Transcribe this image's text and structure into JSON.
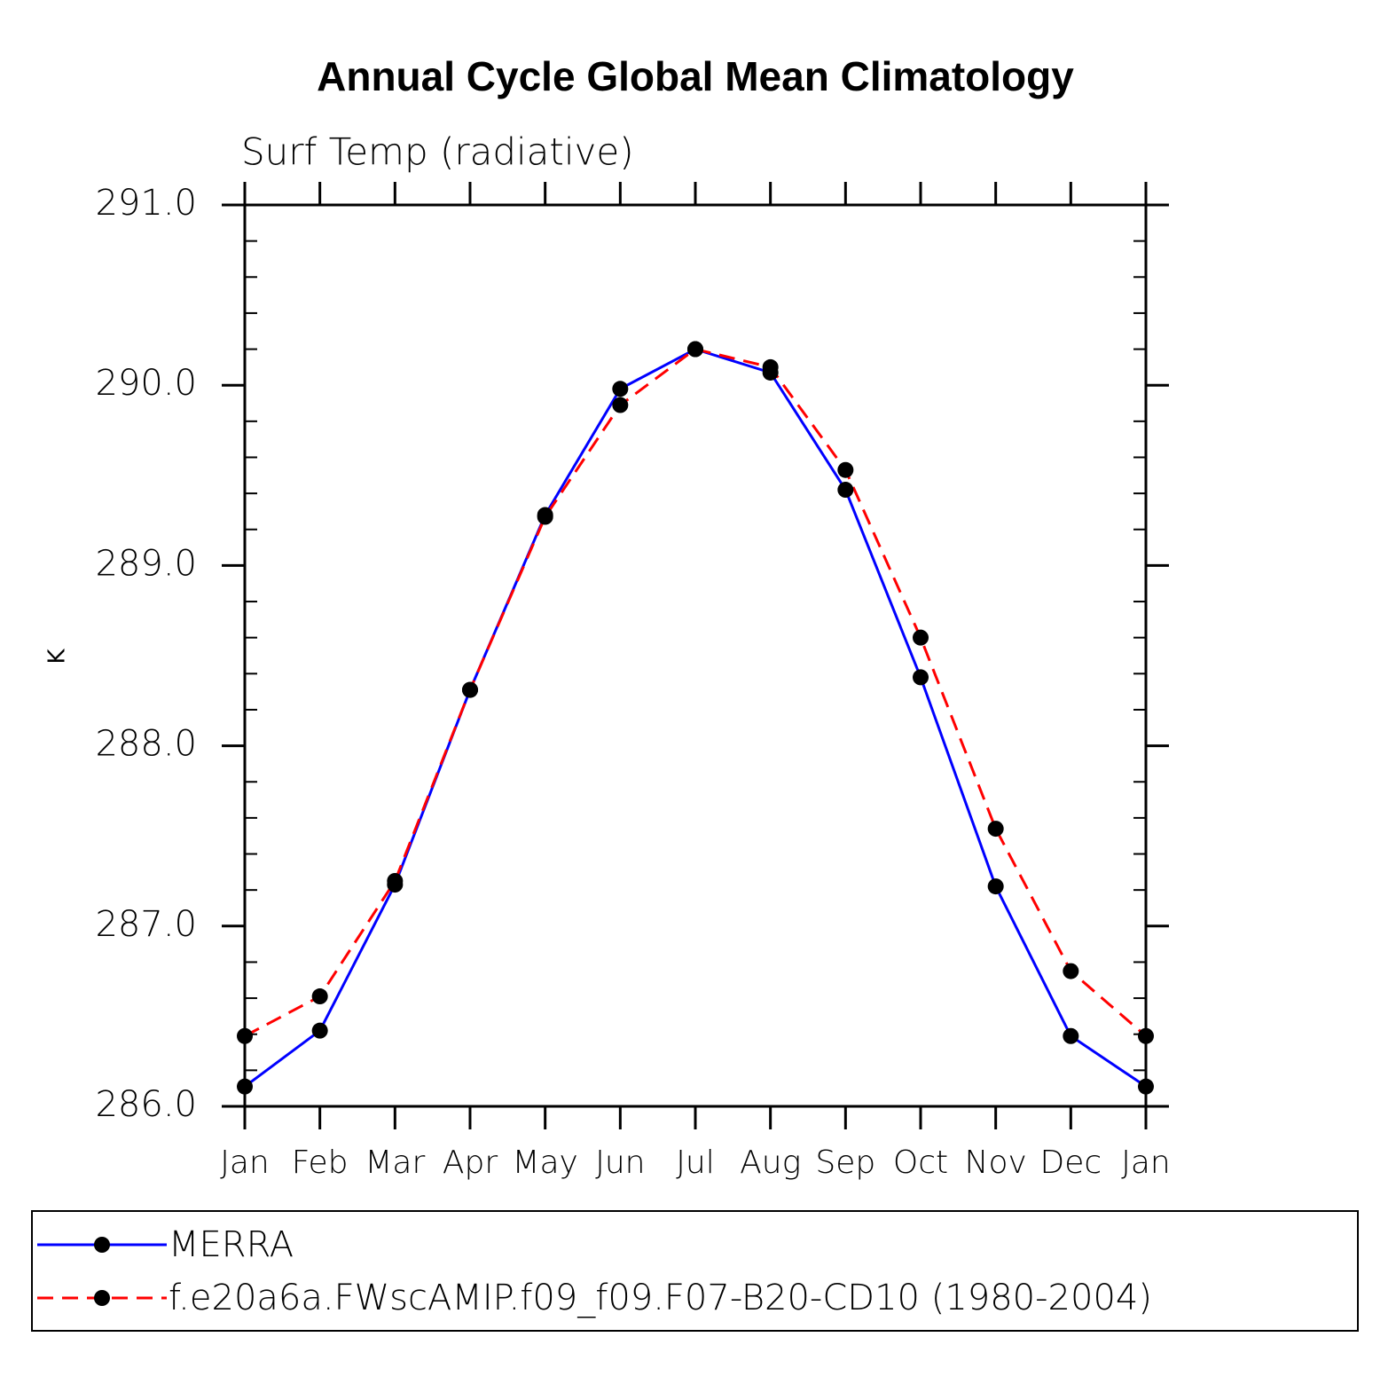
{
  "chart_data": {
    "type": "line",
    "title": "Annual Cycle Global Mean Climatology",
    "subtitle": "Surf Temp (radiative)",
    "y_label": "K",
    "categories": [
      "Jan",
      "Feb",
      "Mar",
      "Apr",
      "May",
      "Jun",
      "Jul",
      "Aug",
      "Sep",
      "Oct",
      "Nov",
      "Dec",
      "Jan"
    ],
    "series": [
      {
        "name": "MERRA",
        "color": "#0000ff",
        "dash": false,
        "values": [
          286.11,
          286.42,
          287.23,
          288.31,
          289.28,
          289.98,
          290.2,
          290.07,
          289.42,
          288.38,
          287.22,
          286.39,
          286.11
        ]
      },
      {
        "name": "f.e20a6a.FWscAMIP.f09_f09.F07-B20-CD10 (1980-2004)",
        "color": "#ff0000",
        "dash": true,
        "values": [
          286.39,
          286.61,
          287.25,
          288.31,
          289.27,
          289.89,
          290.2,
          290.1,
          289.53,
          288.6,
          287.54,
          286.75,
          286.39
        ]
      }
    ],
    "marker_color": "#000000",
    "ylim": [
      286,
      291
    ],
    "yticks": [
      {
        "value": 286,
        "label": "286.0"
      },
      {
        "value": 287,
        "label": "287.0"
      },
      {
        "value": 288,
        "label": "288.0"
      },
      {
        "value": 289,
        "label": "289.0"
      },
      {
        "value": 290,
        "label": "290.0"
      },
      {
        "value": 291,
        "label": "291.0"
      }
    ],
    "yminor_ticks": [
      286.2,
      286.4,
      286.6,
      286.8,
      287.2,
      287.4,
      287.6,
      287.8,
      288.2,
      288.4,
      288.6,
      288.8,
      289.2,
      289.4,
      289.6,
      289.8,
      290.2,
      290.4,
      290.6,
      290.8
    ],
    "legend": "bottom"
  }
}
